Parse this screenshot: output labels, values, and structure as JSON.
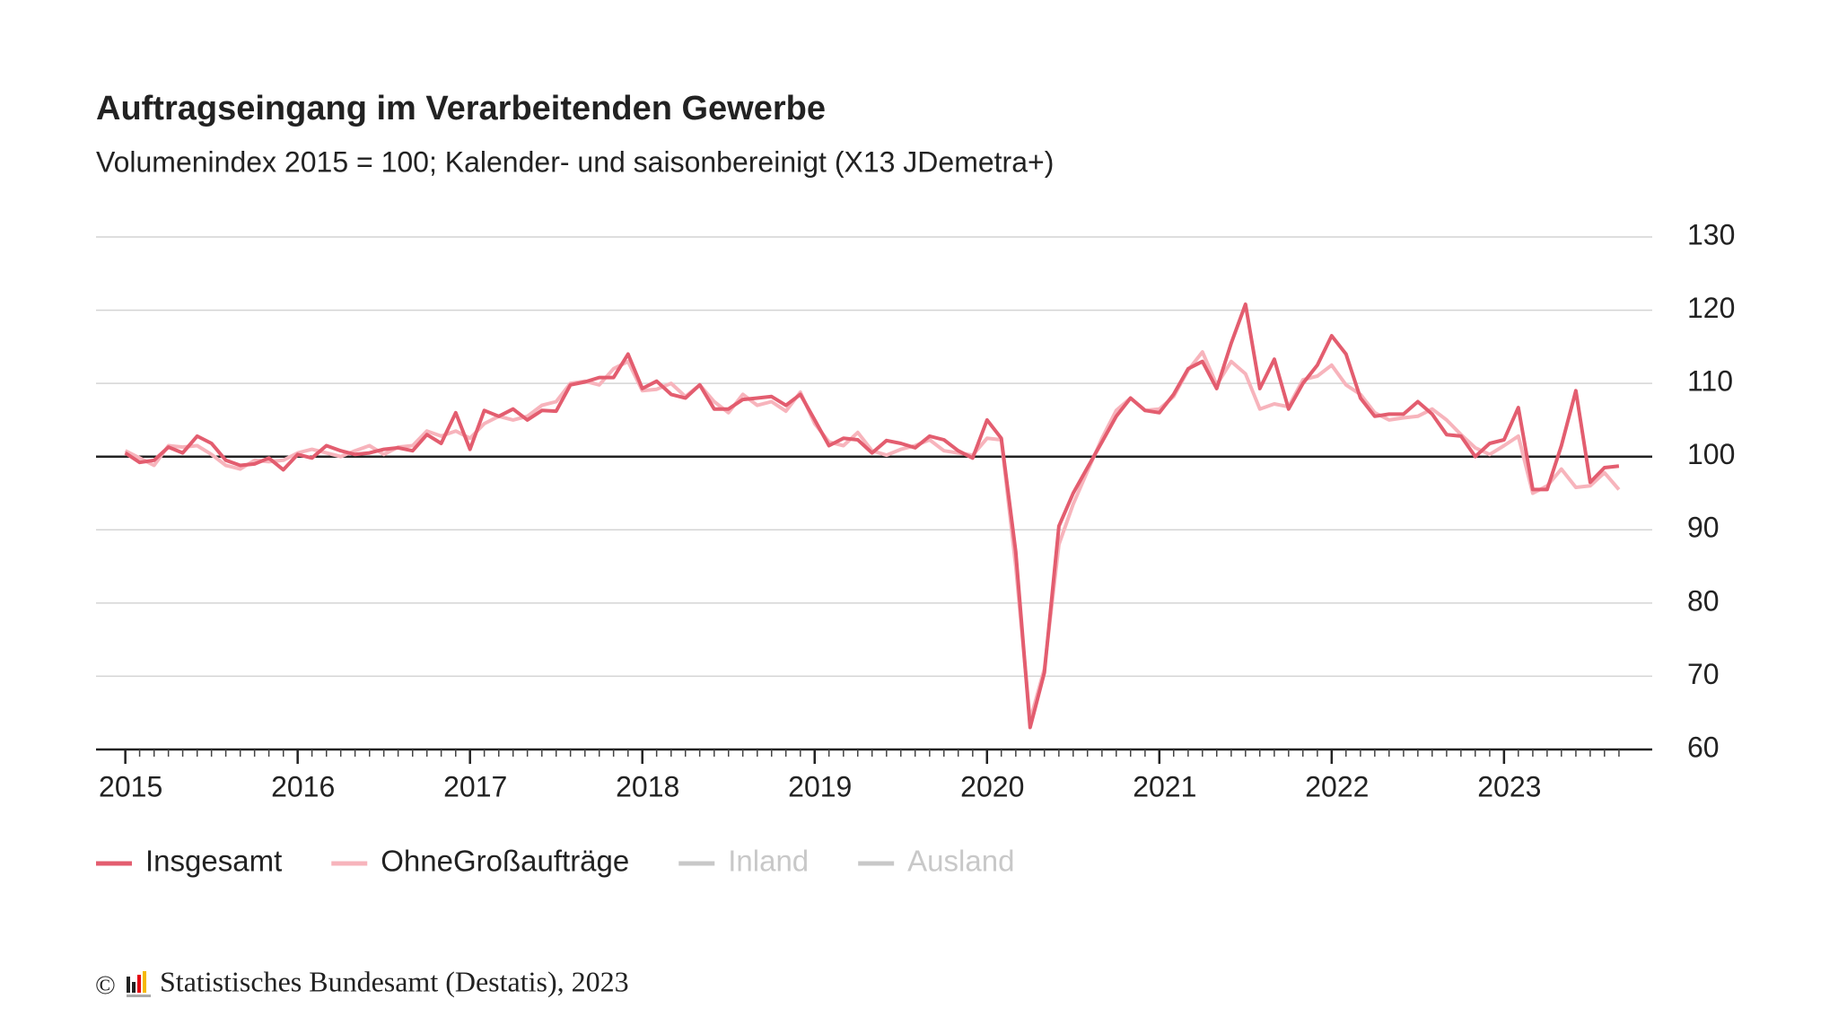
{
  "chart_data": {
    "type": "line",
    "title": "Auftragseingang im Verarbeitenden Gewerbe",
    "subtitle": "Volumenindex 2015 = 100; Kalender- und saisonbereinigt (X13 JDemetra+)",
    "x": [
      2015,
      2015.083,
      2015.167,
      2015.25,
      2015.333,
      2015.417,
      2015.5,
      2015.583,
      2015.667,
      2015.75,
      2015.833,
      2015.917,
      2016,
      2016.083,
      2016.167,
      2016.25,
      2016.333,
      2016.417,
      2016.5,
      2016.583,
      2016.667,
      2016.75,
      2016.833,
      2016.917,
      2017,
      2017.083,
      2017.167,
      2017.25,
      2017.333,
      2017.417,
      2017.5,
      2017.583,
      2017.667,
      2017.75,
      2017.833,
      2017.917,
      2018,
      2018.083,
      2018.167,
      2018.25,
      2018.333,
      2018.417,
      2018.5,
      2018.583,
      2018.667,
      2018.75,
      2018.833,
      2018.917,
      2019,
      2019.083,
      2019.167,
      2019.25,
      2019.333,
      2019.417,
      2019.5,
      2019.583,
      2019.667,
      2019.75,
      2019.833,
      2019.917,
      2020,
      2020.083,
      2020.167,
      2020.25,
      2020.333,
      2020.417,
      2020.5,
      2020.583,
      2020.667,
      2020.75,
      2020.833,
      2020.917,
      2021,
      2021.083,
      2021.167,
      2021.25,
      2021.333,
      2021.417,
      2021.5,
      2021.583,
      2021.667,
      2021.75,
      2021.833,
      2021.917,
      2022,
      2022.083,
      2022.167,
      2022.25,
      2022.333,
      2022.417,
      2022.5,
      2022.583,
      2022.667,
      2022.75,
      2022.833,
      2022.917,
      2023,
      2023.083,
      2023.167,
      2023.25,
      2023.333,
      2023.417,
      2023.5,
      2023.583,
      2023.667
    ],
    "series": [
      {
        "name": "Insgesamt",
        "color": "#e35d6f",
        "values": [
          100.5,
          99.2,
          99.5,
          101.3,
          100.5,
          102.8,
          101.8,
          99.5,
          98.8,
          99,
          99.8,
          98.2,
          100.3,
          99.8,
          101.5,
          100.8,
          100.3,
          100.5,
          101,
          101.2,
          100.8,
          103,
          101.8,
          106,
          101,
          106.3,
          105.5,
          106.5,
          105,
          106.3,
          106.2,
          109.8,
          110.2,
          110.8,
          110.8,
          114,
          109.3,
          110.3,
          108.5,
          108,
          109.8,
          106.5,
          106.5,
          107.8,
          108,
          108.2,
          107,
          108.5,
          105,
          101.5,
          102.5,
          102.3,
          100.5,
          102.2,
          101.8,
          101.2,
          102.8,
          102.3,
          100.8,
          99.8,
          105,
          102.5,
          87,
          63,
          70.5,
          90.5,
          95,
          98.5,
          102,
          105.5,
          108,
          106.3,
          106,
          108.5,
          112,
          113,
          109.3,
          115.5,
          120.8,
          109.3,
          113.3,
          106.5,
          110,
          112.5,
          116.5,
          114,
          108,
          105.5,
          105.8,
          105.8,
          107.5,
          105.8,
          103,
          102.8,
          100,
          101.8,
          102.3,
          106.7,
          95.5,
          95.5,
          101.5,
          109,
          96.5,
          98.5,
          98.7
        ]
      },
      {
        "name": "OhneGroßaufträge",
        "color": "#f7b4bc",
        "values": [
          100.8,
          99.8,
          98.8,
          101.5,
          101.3,
          101.5,
          100.3,
          98.8,
          98.3,
          99.5,
          99.3,
          99.5,
          100.5,
          101,
          100.5,
          100,
          100.8,
          101.5,
          100.3,
          101.3,
          101.5,
          103.5,
          102.8,
          103.5,
          102.5,
          104.5,
          105.5,
          105,
          105.5,
          107,
          107.5,
          110,
          110.3,
          109.8,
          112,
          113,
          109,
          109.2,
          110,
          108.2,
          109.8,
          107.5,
          106,
          108.5,
          107,
          107.5,
          106.2,
          108.8,
          104.5,
          102,
          101.5,
          103.3,
          100.8,
          100.2,
          101,
          101.5,
          102.3,
          100.8,
          100.5,
          100.2,
          102.5,
          102.3,
          85,
          64,
          71,
          88,
          93.5,
          98,
          102.5,
          106.3,
          108,
          106.3,
          106.5,
          108.2,
          111.8,
          114.3,
          109.8,
          113,
          111.3,
          106.5,
          107.2,
          106.8,
          110.5,
          111,
          112.5,
          109.8,
          108.5,
          106,
          105,
          105.3,
          105.5,
          106.5,
          105,
          103,
          101.2,
          100.3,
          101.5,
          102.8,
          95,
          96,
          98.3,
          95.8,
          96,
          97.8,
          95.5
        ]
      },
      {
        "name": "Inland",
        "color": "#c8c8c8",
        "visible": false
      },
      {
        "name": "Ausland",
        "color": "#c8c8c8",
        "visible": false
      }
    ],
    "xlim": [
      2014.83,
      2023.86
    ],
    "xticks": [
      2015,
      2016,
      2017,
      2018,
      2019,
      2020,
      2021,
      2022,
      2023
    ],
    "ylim": [
      60,
      130
    ],
    "yticks": [
      60,
      70,
      80,
      90,
      100,
      110,
      120,
      130
    ],
    "baseline": 100,
    "grid": true,
    "legend": "bottom",
    "copyright": "©",
    "source": "Statistisches Bundesamt (Destatis), 2023"
  }
}
